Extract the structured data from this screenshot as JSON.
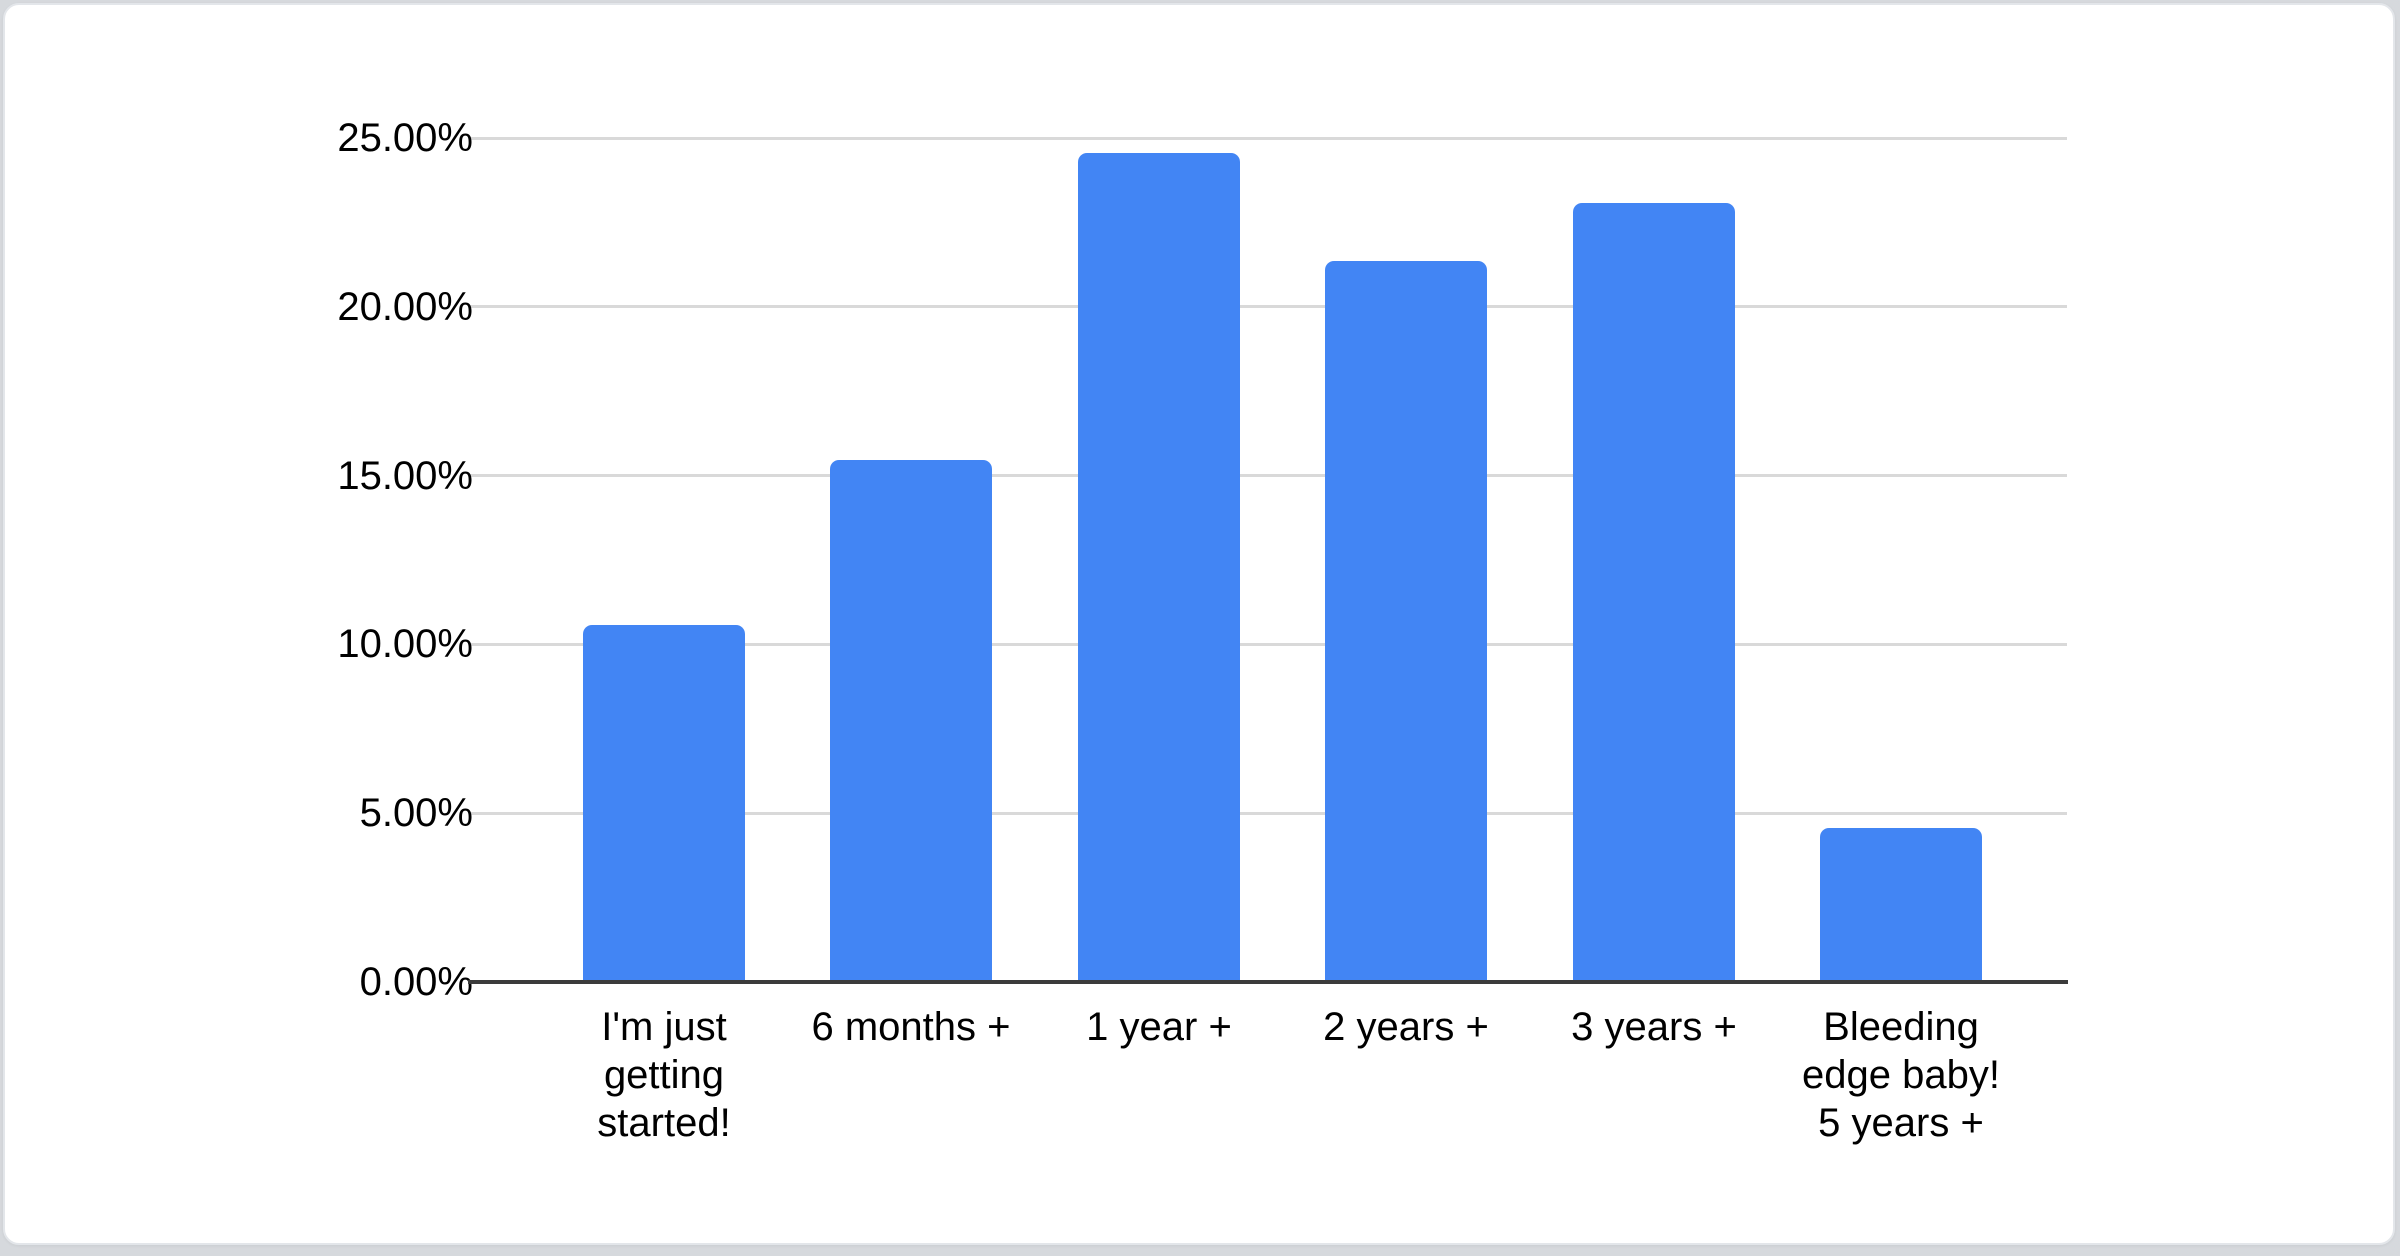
{
  "page": {
    "background_color": "#d6d9dd",
    "card_background_color": "#ffffff",
    "card_border_color": "#e3e6ea"
  },
  "chart_data": {
    "type": "bar",
    "title": "",
    "xlabel": "",
    "ylabel": "",
    "categories": [
      "I'm just getting started!",
      "6 months +",
      "1 year +",
      "2 years +",
      "3 years +",
      "Bleeding edge baby! 5 years +"
    ],
    "category_lines": [
      [
        "I'm just",
        "getting",
        "started!"
      ],
      [
        "6 months +"
      ],
      [
        "1 year +"
      ],
      [
        "2 years +"
      ],
      [
        "3 years +"
      ],
      [
        "Bleeding",
        "edge baby!",
        "5 years +"
      ]
    ],
    "values": [
      10.6,
      15.5,
      24.6,
      21.4,
      23.1,
      4.6
    ],
    "value_unit": "%",
    "ylim": [
      0,
      25
    ],
    "y_tick_values": [
      0,
      5,
      10,
      15,
      20,
      25
    ],
    "y_tick_labels": [
      "0.00%",
      "5.00%",
      "10.00%",
      "15.00%",
      "20.00%",
      "25.00%"
    ],
    "grid": true,
    "legend_position": "none",
    "bar_color": "#4285F4",
    "gridline_color": "#D9D9D9",
    "axis_line_color": "#3B3B3B",
    "text_color": "#000000"
  }
}
